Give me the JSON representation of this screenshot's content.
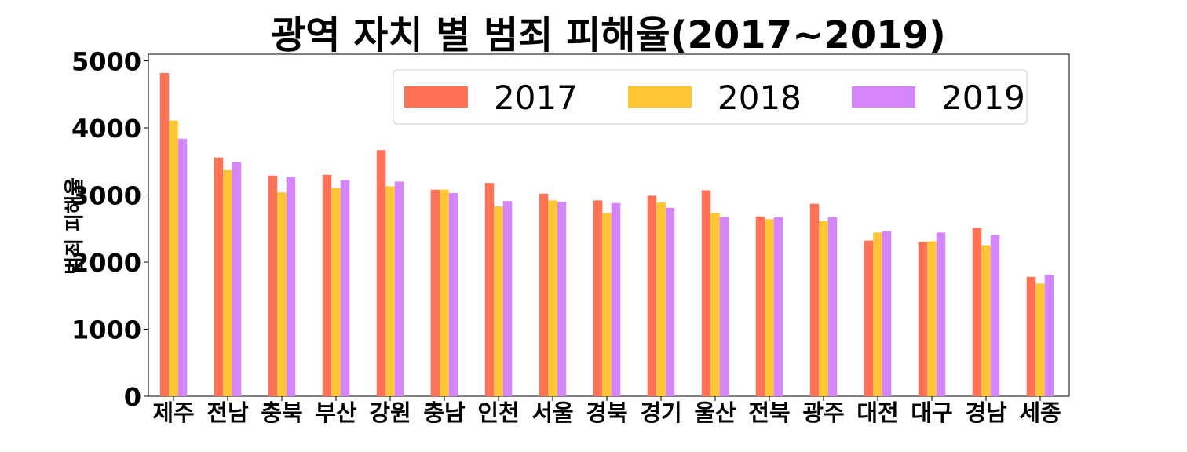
{
  "chart_data": {
    "type": "bar",
    "title": "광역 자치 별 범죄 피해율(2017~2019)",
    "xlabel": "",
    "ylabel": "범죄 피해율",
    "ylim": [
      0,
      5100
    ],
    "yticks": [
      0,
      1000,
      2000,
      3000,
      4000,
      5000
    ],
    "grid": false,
    "legend_position": "top-right",
    "categories": [
      "제주",
      "전남",
      "충북",
      "부산",
      "강원",
      "충남",
      "인천",
      "서울",
      "경북",
      "경기",
      "울산",
      "전북",
      "광주",
      "대전",
      "대구",
      "경남",
      "세종"
    ],
    "series": [
      {
        "name": "2017",
        "color": "#ff7256",
        "values": [
          4820,
          3560,
          3290,
          3300,
          3670,
          3080,
          3180,
          3020,
          2920,
          2990,
          3070,
          2680,
          2870,
          2320,
          2300,
          2510,
          1780
        ]
      },
      {
        "name": "2018",
        "color": "#ffc535",
        "values": [
          4110,
          3370,
          3040,
          3100,
          3130,
          3080,
          2830,
          2920,
          2730,
          2890,
          2730,
          2640,
          2610,
          2440,
          2310,
          2250,
          1680
        ]
      },
      {
        "name": "2019",
        "color": "#d485fa",
        "values": [
          3840,
          3490,
          3270,
          3220,
          3200,
          3030,
          2910,
          2900,
          2880,
          2810,
          2670,
          2670,
          2670,
          2460,
          2440,
          2400,
          1810
        ]
      }
    ]
  }
}
